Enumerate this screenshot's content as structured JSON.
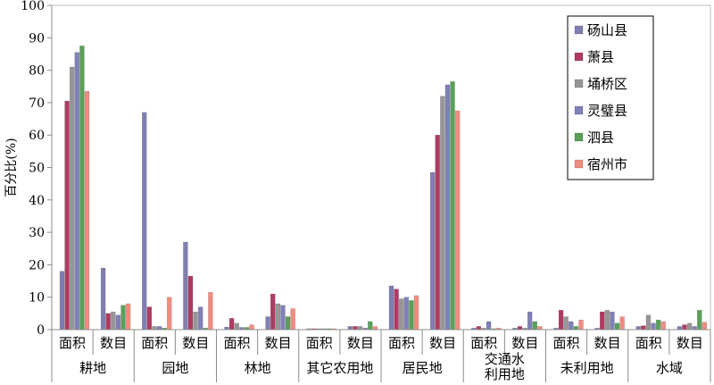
{
  "chart_data": {
    "type": "bar",
    "ylabel": "百分比(%)",
    "ylim": [
      0,
      100
    ],
    "yticks": [
      0,
      10,
      20,
      30,
      40,
      50,
      60,
      70,
      80,
      90,
      100
    ],
    "grid": false,
    "legend_position": "top-right",
    "groups": [
      {
        "label": "耕地",
        "subs": [
          "面积",
          "数目"
        ]
      },
      {
        "label": "园地",
        "subs": [
          "面积",
          "数目"
        ]
      },
      {
        "label": "林地",
        "subs": [
          "面积",
          "数目"
        ]
      },
      {
        "label": "其它农用地",
        "subs": [
          "面积",
          "数目"
        ]
      },
      {
        "label": "居民地",
        "subs": [
          "面积",
          "数目"
        ]
      },
      {
        "label": "交通水\n利用地",
        "subs": [
          "面积",
          "数目"
        ]
      },
      {
        "label": "未利用地",
        "subs": [
          "面积",
          "数目"
        ]
      },
      {
        "label": "水域",
        "subs": [
          "面积",
          "数目"
        ]
      }
    ],
    "series": [
      {
        "name": "砀山县",
        "color": "#7f7fb0",
        "values": [
          18,
          19,
          67,
          27,
          0.8,
          4,
          0.3,
          1,
          13.5,
          48.5,
          0.5,
          0.5,
          0.5,
          0.5,
          1,
          1
        ]
      },
      {
        "name": "萧县",
        "color": "#b03a62",
        "values": [
          70.5,
          5,
          7,
          16.5,
          3.5,
          11,
          0.3,
          1,
          12.5,
          60,
          1,
          1,
          6,
          5.5,
          1.2,
          1.5
        ]
      },
      {
        "name": "埇桥区",
        "color": "#969696",
        "values": [
          81,
          5.5,
          1,
          5.5,
          2,
          8,
          0.3,
          1,
          9.5,
          72,
          0.5,
          0.5,
          4,
          6,
          4.5,
          2
        ]
      },
      {
        "name": "灵璧县",
        "color": "#8080b8",
        "values": [
          85.5,
          4.5,
          1,
          7,
          0.7,
          7.5,
          0.3,
          0.5,
          10,
          75.5,
          2.5,
          5.5,
          2.5,
          5.5,
          2,
          1
        ]
      },
      {
        "name": "泗县",
        "color": "#5aa05a",
        "values": [
          87.5,
          7.5,
          0.5,
          0.5,
          0.7,
          4,
          0.3,
          2.5,
          9,
          76.5,
          0.3,
          2.5,
          1,
          2,
          3,
          6
        ]
      },
      {
        "name": "宿州市",
        "color": "#f08c80",
        "values": [
          73.5,
          8,
          10,
          11.5,
          1.5,
          6.5,
          0.3,
          1,
          10.5,
          67.5,
          0.5,
          1,
          3,
          4,
          2.5,
          2.3
        ]
      }
    ]
  }
}
